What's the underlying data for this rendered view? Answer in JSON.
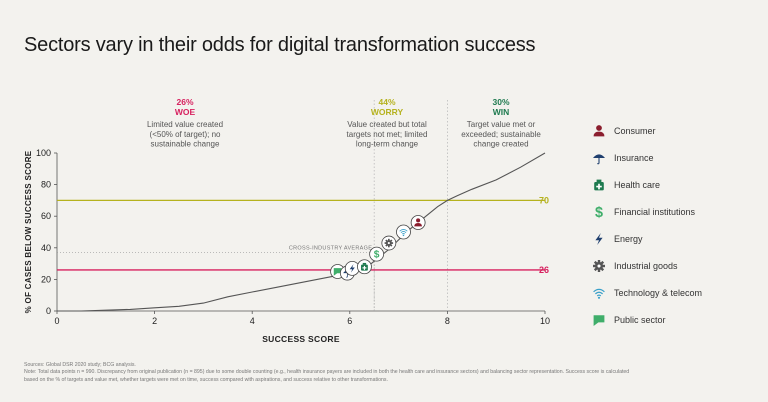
{
  "title": "Sectors vary in their odds for digital transformation success",
  "chart_data": {
    "type": "line",
    "xlabel": "SUCCESS SCORE",
    "ylabel": "% OF CASES BELOW SUCCESS SCORE",
    "xlim": [
      0,
      10
    ],
    "ylim": [
      0,
      100
    ],
    "xticks": [
      "0",
      "2",
      "4",
      "6",
      "8",
      "10"
    ],
    "yticks": [
      "0",
      "20",
      "40",
      "60",
      "80",
      "100"
    ],
    "series": [
      {
        "x": [
          0,
          0.5,
          1,
          1.5,
          2,
          2.5,
          3,
          3.5,
          4,
          4.5,
          5,
          5.5,
          6,
          6.2,
          6.4,
          6.6,
          6.8,
          7,
          7.2,
          7.4,
          7.6,
          7.8,
          8,
          8.2,
          8.5,
          9,
          9.5,
          10
        ],
        "y": [
          0,
          0,
          0.5,
          1,
          2,
          3,
          5,
          9,
          12,
          15,
          18,
          21,
          24,
          26,
          29,
          34,
          39,
          45,
          51,
          56,
          61,
          66,
          70,
          73,
          77,
          83,
          91,
          100
        ]
      }
    ],
    "reference_lines": [
      {
        "y": 70,
        "label": "70",
        "color": "#b5b21e"
      },
      {
        "y": 26,
        "label": "26",
        "color": "#d7215f"
      }
    ],
    "vertical_dividers": [
      6.5,
      8
    ],
    "cross_industry_average": {
      "x": 6.5,
      "y": 37,
      "label": "CROSS-INDUSTRY AVERAGE"
    },
    "zones": [
      {
        "pct": "26%",
        "name": "WOE",
        "desc": [
          "Limited value created",
          "(<50% of target); no",
          "sustainable change"
        ],
        "color": "#d7215f"
      },
      {
        "pct": "44%",
        "name": "WORRY",
        "desc": [
          "Value created but total",
          "targets not met; limited",
          "long-term change"
        ],
        "color": "#b5b21e"
      },
      {
        "pct": "30%",
        "name": "WIN",
        "desc": [
          "Target value met or",
          "exceeded; sustainable",
          "change created"
        ],
        "color": "#1e7a4f"
      }
    ],
    "sector_markers": [
      {
        "sector": "Public sector",
        "icon": "public-sector-icon",
        "x": 5.75,
        "y": 25
      },
      {
        "sector": "Insurance",
        "icon": "insurance-icon",
        "x": 5.95,
        "y": 24
      },
      {
        "sector": "Energy",
        "icon": "energy-icon",
        "x": 6.05,
        "y": 27
      },
      {
        "sector": "Health care",
        "icon": "health-care-icon",
        "x": 6.3,
        "y": 28
      },
      {
        "sector": "Financial institutions",
        "icon": "financial-institutions-icon",
        "x": 6.55,
        "y": 36
      },
      {
        "sector": "Industrial goods",
        "icon": "industrial-goods-icon",
        "x": 6.8,
        "y": 43
      },
      {
        "sector": "Technology & telecom",
        "icon": "technology-telecom-icon",
        "x": 7.1,
        "y": 50
      },
      {
        "sector": "Consumer",
        "icon": "consumer-icon",
        "x": 7.4,
        "y": 56
      }
    ]
  },
  "legend": [
    {
      "label": "Consumer",
      "icon": "consumer-icon",
      "color": "#8b1e2e"
    },
    {
      "label": "Insurance",
      "icon": "insurance-icon",
      "color": "#1f3f6e"
    },
    {
      "label": "Health care",
      "icon": "health-care-icon",
      "color": "#1e7a4f"
    },
    {
      "label": "Financial institutions",
      "icon": "financial-institutions-icon",
      "color": "#3fae6a"
    },
    {
      "label": "Energy",
      "icon": "energy-icon",
      "color": "#1f3f6e"
    },
    {
      "label": "Industrial goods",
      "icon": "industrial-goods-icon",
      "color": "#555555"
    },
    {
      "label": "Technology & telecom",
      "icon": "technology-telecom-icon",
      "color": "#3aa0c9"
    },
    {
      "label": "Public sector",
      "icon": "public-sector-icon",
      "color": "#3fae6a"
    }
  ],
  "footer": {
    "sources": "Sources: Global DSR 2020 study; BCG analysis.",
    "note1": "Note: Total data points n = 990. Discrepancy from original publication (n = 895) due to some double counting (e.g., health insurance payers are included in both the health care and insurance sectors) and balancing sector representation. Success score is calculated",
    "note2": "based on the % of targets and value met, whether targets were met on time, success compared with aspirations, and success relative to other transformations."
  }
}
